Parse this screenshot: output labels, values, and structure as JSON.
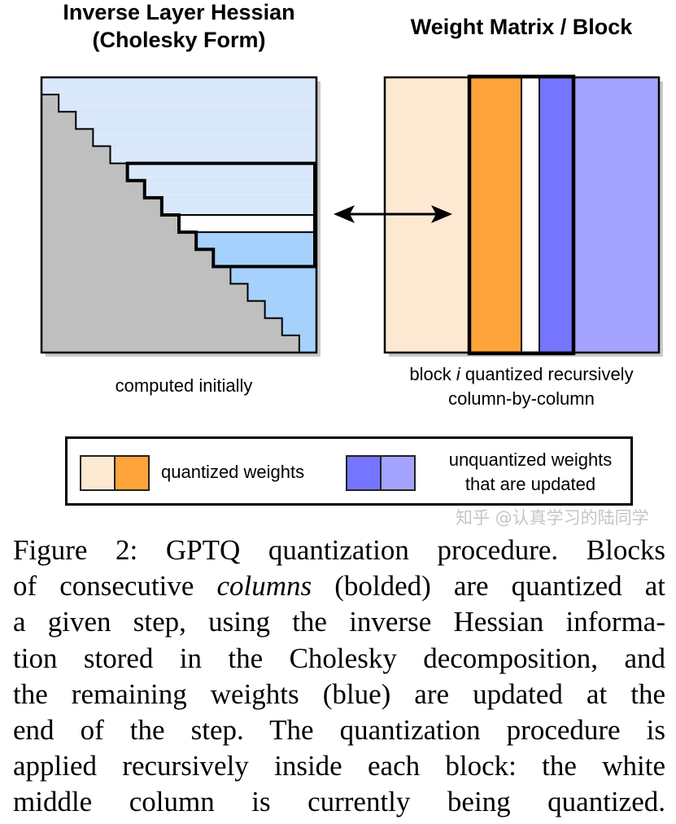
{
  "left_panel": {
    "title_line1": "Inverse Layer Hessian",
    "title_line2": "(Cholesky Form)",
    "label": "computed initially"
  },
  "right_panel": {
    "title": "Weight Matrix / Block",
    "label_pre": "block ",
    "label_italic": "i",
    "label_post": " quantized recursively",
    "label_line2": "column-by-column"
  },
  "legend": {
    "quantized_label": "quantized weights",
    "unquantized_line1": "unquantized weights",
    "unquantized_line2": "that are updated"
  },
  "colors": {
    "gray": "#bfbfbf",
    "light_blue": "#dae8fc",
    "medium_blue": "#a6d1fd",
    "peach": "#fde8d2",
    "orange": "#ffa33b",
    "blue": "#7575ff",
    "lavender": "#a3a3ff",
    "white": "#ffffff"
  },
  "caption": {
    "line1": "Figure 2: GPTQ quantization procedure. Blocks",
    "line2_a": "of consecutive ",
    "line2_italic": "columns",
    "line2_b": " (bolded) are quantized at",
    "line3": "a given step, using the inverse Hessian informa-",
    "line4": "tion stored in the Cholesky decomposition, and",
    "line5": "the remaining weights (blue) are updated at the",
    "line6": "end of the step.  The quantization procedure is",
    "line7": "applied recursively inside each block: the white",
    "line8": "middle column is currently being quantized."
  },
  "watermark": "知乎 @认真学习的陆同学"
}
